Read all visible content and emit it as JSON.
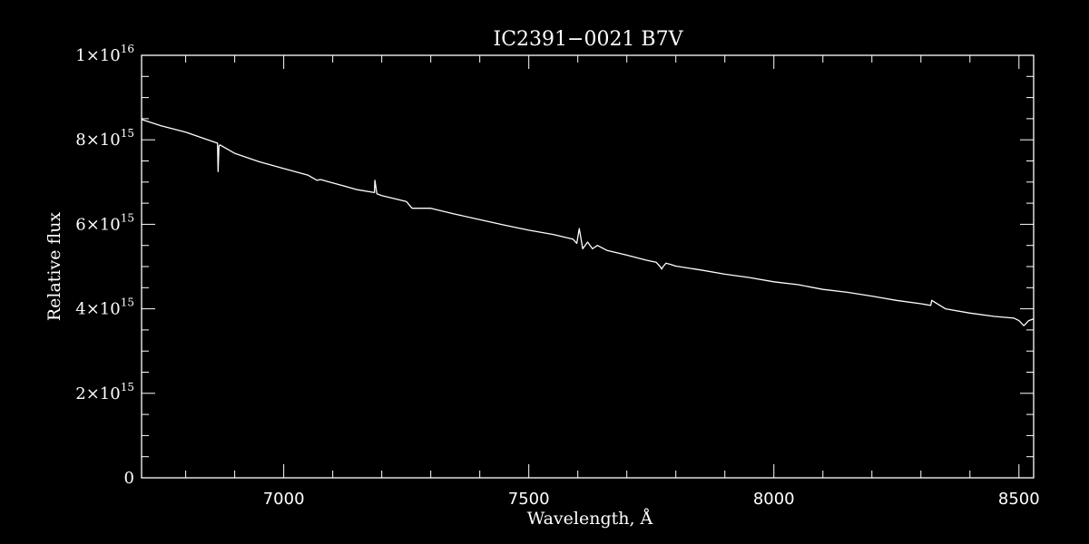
{
  "chart_data": {
    "type": "line",
    "title": "IC2391−0021   B7V",
    "xlabel": "Wavelength, Å",
    "ylabel": "Relative flux",
    "xlim": [
      6710,
      8530
    ],
    "ylim": [
      0,
      1e+16
    ],
    "x_ticks": [
      {
        "value": 7000,
        "label": "7000"
      },
      {
        "value": 7500,
        "label": "7500"
      },
      {
        "value": 8000,
        "label": "8000"
      },
      {
        "value": 8500,
        "label": "8500"
      }
    ],
    "y_ticks": [
      {
        "value": 0,
        "mant": "0",
        "exp": ""
      },
      {
        "value": 2000000000000000.0,
        "mant": "2×10",
        "exp": "15"
      },
      {
        "value": 4000000000000000.0,
        "mant": "4×10",
        "exp": "15"
      },
      {
        "value": 6000000000000000.0,
        "mant": "6×10",
        "exp": "15"
      },
      {
        "value": 8000000000000000.0,
        "mant": "8×10",
        "exp": "15"
      },
      {
        "value": 1e+16,
        "mant": "1×10",
        "exp": "16"
      }
    ],
    "grid": false,
    "colors": {
      "background": "#000000",
      "foreground": "#ffffff"
    },
    "series": [
      {
        "x": [
          6710,
          6750,
          6800,
          6850,
          6865,
          6866,
          6868,
          6870,
          6900,
          6950,
          7000,
          7050,
          7062,
          7068,
          7075,
          7100,
          7150,
          7185,
          7186,
          7190,
          7200,
          7250,
          7262,
          7300,
          7350,
          7400,
          7450,
          7500,
          7550,
          7590,
          7598,
          7603,
          7610,
          7620,
          7630,
          7640,
          7660,
          7700,
          7740,
          7760,
          7768,
          7771,
          7774,
          7780,
          7790,
          7800,
          7850,
          7900,
          7950,
          8000,
          8050,
          8100,
          8150,
          8200,
          8220,
          8250,
          8300,
          8320,
          8322,
          8350,
          8400,
          8450,
          8490,
          8500,
          8510,
          8515,
          8520,
          8530
        ],
        "y": [
          8480000000000000.0,
          8330000000000000.0,
          8180000000000000.0,
          7980000000000000.0,
          7920000000000000.0,
          7250000000000000.0,
          7850000000000000.0,
          7880000000000000.0,
          7680000000000000.0,
          7480000000000000.0,
          7320000000000000.0,
          7160000000000000.0,
          7080000000000000.0,
          7040000000000000.0,
          7060000000000000.0,
          6980000000000000.0,
          6820000000000000.0,
          6750000000000000.0,
          7040000000000000.0,
          6720000000000000.0,
          6680000000000000.0,
          6540000000000000.0,
          6380000000000000.0,
          6380000000000000.0,
          6240000000000000.0,
          6110000000000000.0,
          5980000000000000.0,
          5860000000000000.0,
          5760000000000000.0,
          5650000000000000.0,
          5550000000000000.0,
          5900000000000000.0,
          5420000000000000.0,
          5580000000000000.0,
          5420000000000000.0,
          5500000000000000.0,
          5380000000000000.0,
          5270000000000000.0,
          5150000000000000.0,
          5100000000000000.0,
          5000000000000000.0,
          4940000000000000.0,
          5000000000000000.0,
          5080000000000000.0,
          5050000000000000.0,
          5010000000000000.0,
          4920000000000000.0,
          4820000000000000.0,
          4740000000000000.0,
          4640000000000000.0,
          4570000000000000.0,
          4460000000000000.0,
          4390000000000000.0,
          4300000000000000.0,
          4260000000000000.0,
          4200000000000000.0,
          4120000000000000.0,
          4080000000000000.0,
          4200000000000000.0,
          4000000000000000.0,
          3900000000000000.0,
          3820000000000000.0,
          3780000000000000.0,
          3720000000000000.0,
          3600000000000000.0,
          3660000000000000.0,
          3720000000000000.0,
          3760000000000000.0
        ]
      }
    ]
  }
}
